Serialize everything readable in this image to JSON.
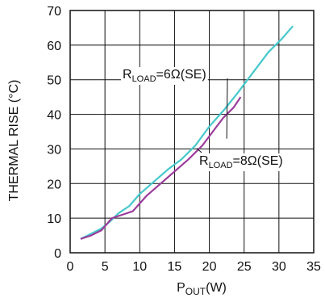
{
  "chart_data": {
    "type": "line",
    "title": "",
    "xlabel": {
      "main": "P",
      "sub": "OUT",
      "unit": "(W)"
    },
    "ylabel": "THERMAL RISE (°C)",
    "xlim": [
      0,
      35
    ],
    "ylim": [
      0,
      70
    ],
    "x_ticks": [
      "0",
      "5",
      "10",
      "15",
      "20",
      "25",
      "30",
      "35"
    ],
    "y_ticks": [
      "0",
      "10",
      "20",
      "30",
      "40",
      "50",
      "60",
      "70"
    ],
    "grid": true,
    "series": [
      {
        "color": "#45c8cc",
        "x": [
          1.5,
          3,
          4.5,
          5.7,
          7,
          8.5,
          10,
          12,
          14,
          16,
          18,
          20,
          22,
          24,
          25.5,
          27,
          28.5,
          30.5,
          32
        ],
        "y": [
          4,
          5.5,
          7,
          9,
          11.5,
          13.5,
          17,
          20.5,
          24,
          27,
          31,
          36.5,
          41,
          46,
          50,
          54,
          58,
          62,
          65.5
        ]
      },
      {
        "color": "#9b3b9b",
        "x": [
          1.5,
          3,
          4.5,
          6,
          7.5,
          9,
          11,
          13,
          15,
          17,
          19,
          20.5,
          22,
          23.5,
          24.5
        ],
        "y": [
          4,
          5,
          6.5,
          10,
          11,
          12,
          16.5,
          20,
          23.5,
          27,
          31,
          35,
          39,
          42,
          45
        ]
      }
    ],
    "annotations": [
      {
        "main": "R",
        "sub": "LOAD",
        "rest": "=6Ω(SE)"
      },
      {
        "main": "R",
        "sub": "LOAD",
        "rest": "=8Ω(SE)"
      }
    ]
  }
}
